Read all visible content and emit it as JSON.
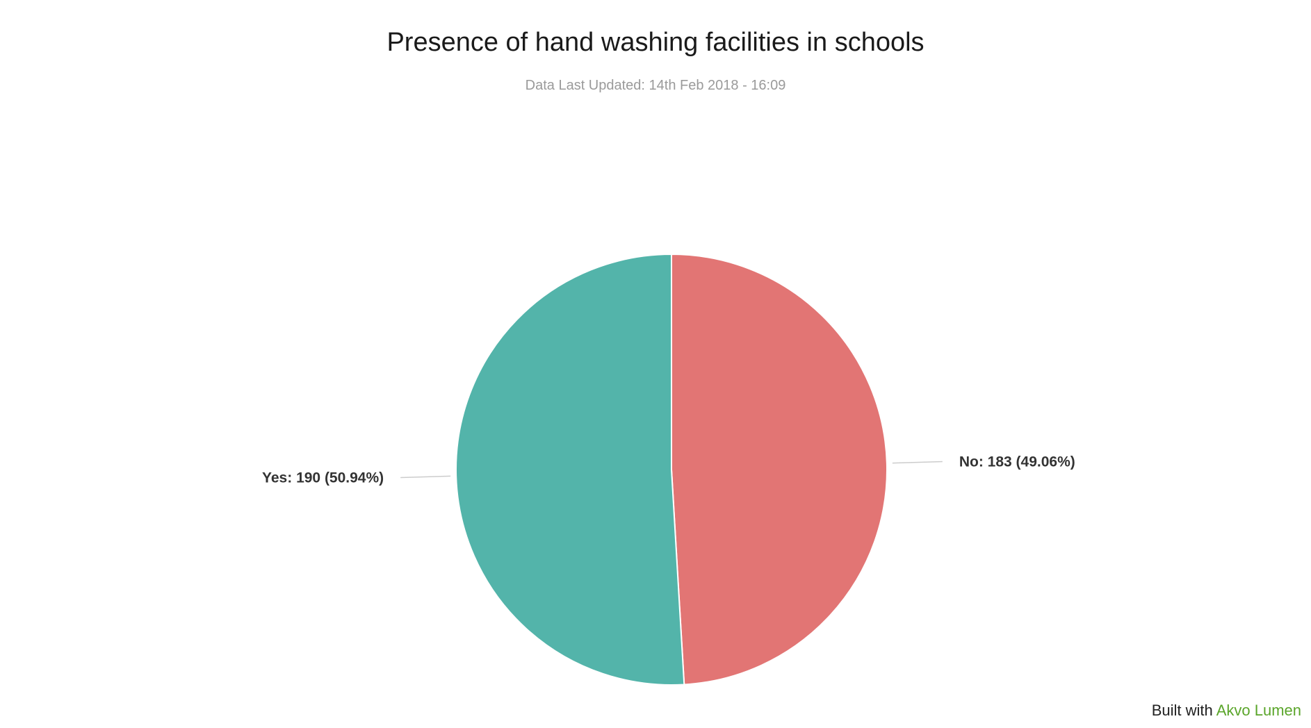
{
  "page": {
    "title": "Presence of hand washing facilities in schools",
    "subtitle": "Data Last Updated: 14th Feb 2018 - 16:09"
  },
  "footer": {
    "prefix": "Built with",
    "link_text": "Akvo Lumen",
    "link_color": "#5aa52a"
  },
  "chart_data": {
    "type": "pie",
    "title": "Presence of hand washing facilities in schools",
    "subtitle": "Data Last Updated: 14th Feb 2018 - 16:09",
    "slices": [
      {
        "label": "No",
        "value": 183,
        "percent": 49.06,
        "display": "No: 183 (49.06%)",
        "color": "#e27574"
      },
      {
        "label": "Yes",
        "value": 190,
        "percent": 50.94,
        "display": "Yes: 190 (50.94%)",
        "color": "#53b4aa"
      }
    ]
  }
}
